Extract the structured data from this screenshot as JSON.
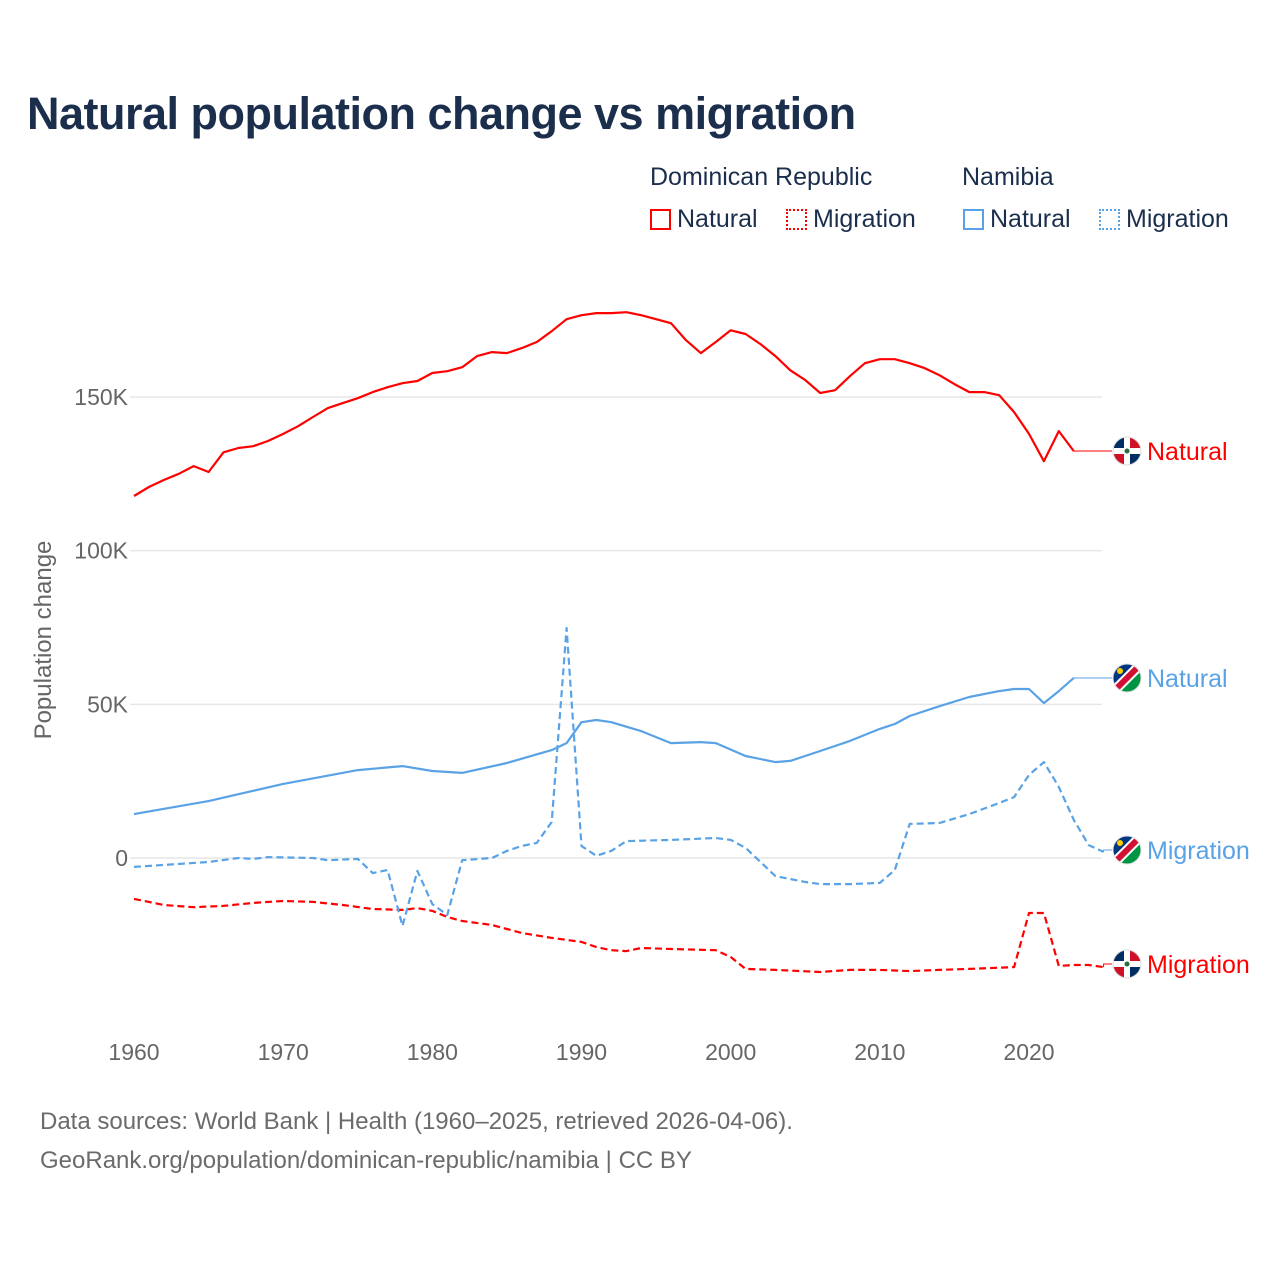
{
  "chart_data": {
    "type": "line",
    "title": "Natural population change vs migration",
    "xlabel": "",
    "ylabel": "Population change",
    "xlim": [
      1960,
      2025
    ],
    "ylim": [
      -45000,
      185000
    ],
    "x_ticks": [
      "1960",
      "1970",
      "1980",
      "1990",
      "2000",
      "2010",
      "2020"
    ],
    "y_ticks": [
      {
        "v": 0,
        "label": "0"
      },
      {
        "v": 50000,
        "label": "50K"
      },
      {
        "v": 100000,
        "label": "100K"
      },
      {
        "v": 150000,
        "label": "150K"
      }
    ],
    "grid": true,
    "legend": {
      "groups": [
        {
          "name": "Dominican Republic",
          "items": [
            "Natural",
            "Migration"
          ]
        },
        {
          "name": "Namibia",
          "items": [
            "Natural",
            "Migration"
          ]
        }
      ],
      "placement": "top-right"
    },
    "series": [
      {
        "name": "Dominican Republic Natural",
        "label": "Natural",
        "color": "#ff0000",
        "dash": false,
        "flag": "dominican-republic",
        "x": [
          1960,
          1961,
          1962,
          1963,
          1964,
          1965,
          1966,
          1967,
          1968,
          1969,
          1970,
          1971,
          1972,
          1973,
          1974,
          1975,
          1976,
          1977,
          1978,
          1979,
          1980,
          1981,
          1982,
          1983,
          1984,
          1985,
          1986,
          1987,
          1988,
          1989,
          1990,
          1991,
          1992,
          1993,
          1994,
          1995,
          1996,
          1997,
          1998,
          1999,
          2000,
          2001,
          2002,
          2003,
          2004,
          2005,
          2006,
          2007,
          2008,
          2009,
          2010,
          2011,
          2012,
          2013,
          2014,
          2015,
          2016,
          2017,
          2018,
          2019,
          2020,
          2021,
          2022,
          2023
        ],
        "y": [
          117800,
          120700,
          123000,
          125000,
          127500,
          125600,
          132000,
          133400,
          134000,
          135700,
          138000,
          140500,
          143500,
          146400,
          148000,
          149600,
          151600,
          153200,
          154500,
          155200,
          157800,
          158400,
          159700,
          163300,
          164600,
          164300,
          165900,
          167900,
          171400,
          175300,
          176600,
          177300,
          177300,
          177600,
          176600,
          175300,
          174000,
          168500,
          164300,
          167900,
          171700,
          170500,
          167200,
          163300,
          158700,
          155500,
          151300,
          152200,
          156800,
          161000,
          162300,
          162300,
          161000,
          159400,
          157100,
          154200,
          151600,
          151600,
          150600,
          145100,
          138000,
          129100,
          138900,
          132400
        ]
      },
      {
        "name": "Dominican Republic Migration",
        "label": "Migration",
        "color": "#ff0000",
        "dash": true,
        "flag": "dominican-republic",
        "x": [
          1960,
          1962,
          1964,
          1966,
          1968,
          1970,
          1972,
          1974,
          1976,
          1978,
          1979,
          1980,
          1981,
          1982,
          1984,
          1986,
          1988,
          1990,
          1991,
          1992,
          1993,
          1994,
          1996,
          1999,
          2000,
          2001,
          2003,
          2006,
          2008,
          2010,
          2012,
          2014,
          2016,
          2019,
          2020,
          2021,
          2022,
          2023,
          2024,
          2025
        ],
        "y": [
          -13300,
          -15300,
          -16000,
          -15600,
          -14600,
          -14000,
          -14300,
          -15300,
          -16600,
          -16900,
          -16300,
          -17200,
          -19200,
          -20500,
          -21800,
          -24400,
          -26000,
          -27300,
          -29000,
          -30000,
          -30300,
          -29300,
          -29600,
          -30000,
          -32200,
          -36100,
          -36400,
          -37100,
          -36400,
          -36400,
          -36800,
          -36400,
          -36100,
          -35500,
          -17900,
          -17900,
          -35100,
          -34800,
          -34800,
          -35500
        ]
      },
      {
        "name": "Namibia Natural",
        "label": "Natural",
        "color": "#5aa2e6",
        "dash": false,
        "flag": "namibia",
        "x": [
          1960,
          1965,
          1970,
          1975,
          1978,
          1980,
          1982,
          1985,
          1988,
          1989,
          1990,
          1991,
          1992,
          1994,
          1996,
          1998,
          1999,
          2001,
          2003,
          2004,
          2006,
          2008,
          2010,
          2011,
          2012,
          2014,
          2016,
          2018,
          2019,
          2020,
          2021,
          2022,
          2023
        ],
        "y": [
          14300,
          18500,
          24100,
          28600,
          29900,
          28300,
          27700,
          30900,
          35100,
          37400,
          44200,
          44900,
          44200,
          41300,
          37400,
          37700,
          37400,
          33200,
          31200,
          31600,
          34800,
          38100,
          42000,
          43600,
          46200,
          49400,
          52400,
          54300,
          55000,
          55000,
          50400,
          54300,
          58600
        ]
      },
      {
        "name": "Namibia Migration",
        "label": "Migration",
        "color": "#5aa2e6",
        "dash": true,
        "flag": "namibia",
        "x": [
          1960,
          1965,
          1967,
          1968,
          1969,
          1972,
          1973,
          1975,
          1976,
          1977,
          1978,
          1979,
          1980,
          1981,
          1982,
          1984,
          1985,
          1986,
          1987,
          1988,
          1989,
          1990,
          1991,
          1992,
          1993,
          1996,
          1999,
          2000,
          2001,
          2003,
          2005,
          2006,
          2008,
          2010,
          2011,
          2012,
          2014,
          2016,
          2018,
          2019,
          2020,
          2021,
          2022,
          2023,
          2024,
          2025
        ],
        "y": [
          -2900,
          -1300,
          0,
          -300,
          300,
          0,
          -700,
          -300,
          -4900,
          -3900,
          -22100,
          -4200,
          -15000,
          -18500,
          -700,
          0,
          2300,
          3900,
          4900,
          11700,
          74800,
          3900,
          700,
          2300,
          5500,
          5900,
          6500,
          5900,
          3300,
          -5900,
          -7800,
          -8500,
          -8500,
          -8100,
          -3900,
          11100,
          11400,
          14300,
          17900,
          19800,
          27000,
          31200,
          23100,
          12400,
          4200,
          2000
        ]
      }
    ]
  },
  "footer": {
    "line1": "Data sources: World Bank | Health (1960–2025, retrieved 2026-04-06).",
    "line2": "GeoRank.org/population/dominican-republic/namibia | CC BY"
  }
}
